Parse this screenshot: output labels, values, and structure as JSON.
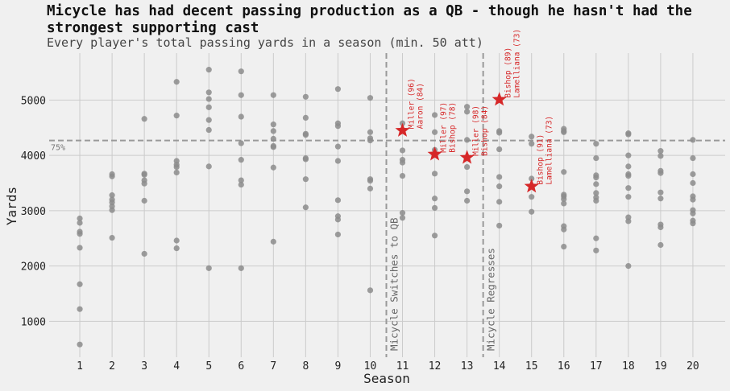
{
  "chart_data": {
    "type": "scatter",
    "title": "Micycle has had decent passing production as a QB - though he hasn't had the strongest supporting cast",
    "subtitle": "Every player's total passing yards in a season (min. 50 att)",
    "xlabel": "Season",
    "ylabel": "Yards",
    "xlim": [
      0.05,
      21.0
    ],
    "ylim": [
      350,
      5850
    ],
    "xticks": [
      1,
      2,
      3,
      4,
      5,
      6,
      7,
      8,
      9,
      10,
      11,
      12,
      13,
      14,
      15,
      16,
      17,
      18,
      19,
      20
    ],
    "yticks": [
      1000,
      2000,
      3000,
      4000,
      5000
    ],
    "grid": true,
    "colors": {
      "points": "#8c8c8c",
      "highlight": "#d62728",
      "reference": "#999999",
      "background": "#f0f0f0"
    },
    "series": [
      {
        "values": [
          [
            1,
            2860
          ],
          [
            1,
            2780
          ],
          [
            1,
            2620
          ],
          [
            1,
            2580
          ],
          [
            1,
            2330
          ],
          [
            1,
            1670
          ],
          [
            1,
            1220
          ],
          [
            1,
            580
          ],
          [
            2,
            3660
          ],
          [
            2,
            3620
          ],
          [
            2,
            3280
          ],
          [
            2,
            3200
          ],
          [
            2,
            3150
          ],
          [
            2,
            3080
          ],
          [
            2,
            3010
          ],
          [
            2,
            2510
          ],
          [
            3,
            4660
          ],
          [
            3,
            3670
          ],
          [
            3,
            3650
          ],
          [
            3,
            3550
          ],
          [
            3,
            3490
          ],
          [
            3,
            3180
          ],
          [
            3,
            2220
          ],
          [
            4,
            5330
          ],
          [
            4,
            4720
          ],
          [
            4,
            3900
          ],
          [
            4,
            3830
          ],
          [
            4,
            3790
          ],
          [
            4,
            3690
          ],
          [
            4,
            2460
          ],
          [
            4,
            2320
          ],
          [
            5,
            5550
          ],
          [
            5,
            5140
          ],
          [
            5,
            5020
          ],
          [
            5,
            4870
          ],
          [
            5,
            4640
          ],
          [
            5,
            4460
          ],
          [
            5,
            3800
          ],
          [
            5,
            1960
          ],
          [
            6,
            5520
          ],
          [
            6,
            5090
          ],
          [
            6,
            4700
          ],
          [
            6,
            4220
          ],
          [
            6,
            3920
          ],
          [
            6,
            3550
          ],
          [
            6,
            3470
          ],
          [
            6,
            1960
          ],
          [
            7,
            5090
          ],
          [
            7,
            4560
          ],
          [
            7,
            4440
          ],
          [
            7,
            4300
          ],
          [
            7,
            4170
          ],
          [
            7,
            4150
          ],
          [
            7,
            3780
          ],
          [
            7,
            2440
          ],
          [
            8,
            5060
          ],
          [
            8,
            4680
          ],
          [
            8,
            4390
          ],
          [
            8,
            4370
          ],
          [
            8,
            3950
          ],
          [
            8,
            3930
          ],
          [
            8,
            3570
          ],
          [
            8,
            3060
          ],
          [
            9,
            5200
          ],
          [
            9,
            4580
          ],
          [
            9,
            4530
          ],
          [
            9,
            4160
          ],
          [
            9,
            3900
          ],
          [
            9,
            3190
          ],
          [
            9,
            2900
          ],
          [
            9,
            2840
          ],
          [
            9,
            2570
          ],
          [
            10,
            5040
          ],
          [
            10,
            4420
          ],
          [
            10,
            4310
          ],
          [
            10,
            4270
          ],
          [
            10,
            3570
          ],
          [
            10,
            3540
          ],
          [
            10,
            3400
          ],
          [
            10,
            1560
          ],
          [
            11,
            4580
          ],
          [
            11,
            4090
          ],
          [
            11,
            3920
          ],
          [
            11,
            3870
          ],
          [
            11,
            3630
          ],
          [
            11,
            2960
          ],
          [
            11,
            2870
          ],
          [
            12,
            4730
          ],
          [
            12,
            4420
          ],
          [
            12,
            4100
          ],
          [
            12,
            3670
          ],
          [
            12,
            3220
          ],
          [
            12,
            3050
          ],
          [
            12,
            2550
          ],
          [
            13,
            4880
          ],
          [
            13,
            4790
          ],
          [
            13,
            4280
          ],
          [
            13,
            3790
          ],
          [
            13,
            3350
          ],
          [
            13,
            3180
          ],
          [
            14,
            4440
          ],
          [
            14,
            4410
          ],
          [
            14,
            4110
          ],
          [
            14,
            3610
          ],
          [
            14,
            3440
          ],
          [
            14,
            3160
          ],
          [
            14,
            2730
          ],
          [
            15,
            4340
          ],
          [
            15,
            4210
          ],
          [
            15,
            3580
          ],
          [
            15,
            3250
          ],
          [
            15,
            2980
          ],
          [
            16,
            4480
          ],
          [
            16,
            4440
          ],
          [
            16,
            4420
          ],
          [
            16,
            3700
          ],
          [
            16,
            3290
          ],
          [
            16,
            3260
          ],
          [
            16,
            3210
          ],
          [
            16,
            3130
          ],
          [
            16,
            2720
          ],
          [
            16,
            2660
          ],
          [
            16,
            2350
          ],
          [
            17,
            4210
          ],
          [
            17,
            3950
          ],
          [
            17,
            3640
          ],
          [
            17,
            3600
          ],
          [
            17,
            3480
          ],
          [
            17,
            3320
          ],
          [
            17,
            3240
          ],
          [
            17,
            3180
          ],
          [
            17,
            2500
          ],
          [
            17,
            2280
          ],
          [
            18,
            4400
          ],
          [
            18,
            4380
          ],
          [
            18,
            4000
          ],
          [
            18,
            3800
          ],
          [
            18,
            3660
          ],
          [
            18,
            3630
          ],
          [
            18,
            3410
          ],
          [
            18,
            3250
          ],
          [
            18,
            2880
          ],
          [
            18,
            2810
          ],
          [
            18,
            2000
          ],
          [
            19,
            4080
          ],
          [
            19,
            3990
          ],
          [
            19,
            3720
          ],
          [
            19,
            3680
          ],
          [
            19,
            3330
          ],
          [
            19,
            3220
          ],
          [
            19,
            2750
          ],
          [
            19,
            2700
          ],
          [
            19,
            2380
          ],
          [
            20,
            4280
          ],
          [
            20,
            3950
          ],
          [
            20,
            3660
          ],
          [
            20,
            3500
          ],
          [
            20,
            3260
          ],
          [
            20,
            3200
          ],
          [
            20,
            3010
          ],
          [
            20,
            2950
          ],
          [
            20,
            2820
          ],
          [
            20,
            2770
          ]
        ]
      },
      {
        "marker": "star",
        "values": [
          {
            "x": 11,
            "y": 4450,
            "label_lines": [
              "Miller (96)",
              "Aaron (84)"
            ]
          },
          {
            "x": 12,
            "y": 4020,
            "label_lines": [
              "Miller (97)",
              "Bishop (78)"
            ]
          },
          {
            "x": 13,
            "y": 3960,
            "label_lines": [
              "Miller (98)",
              "Bishop (84)"
            ]
          },
          {
            "x": 14,
            "y": 5010,
            "label_lines": [
              "Bishop (89)",
              "Lamelliana (73)"
            ]
          },
          {
            "x": 15,
            "y": 3440,
            "label_lines": [
              "Bishop (91)",
              "Lamelliana (73)"
            ]
          }
        ]
      }
    ],
    "reference_lines": [
      {
        "orientation": "horizontal",
        "value": 4270,
        "label": "75%"
      },
      {
        "orientation": "vertical",
        "value": 10.5,
        "label": "Micycle Switches to QB"
      },
      {
        "orientation": "vertical",
        "value": 13.5,
        "label": "Micycle Regresses"
      }
    ]
  }
}
